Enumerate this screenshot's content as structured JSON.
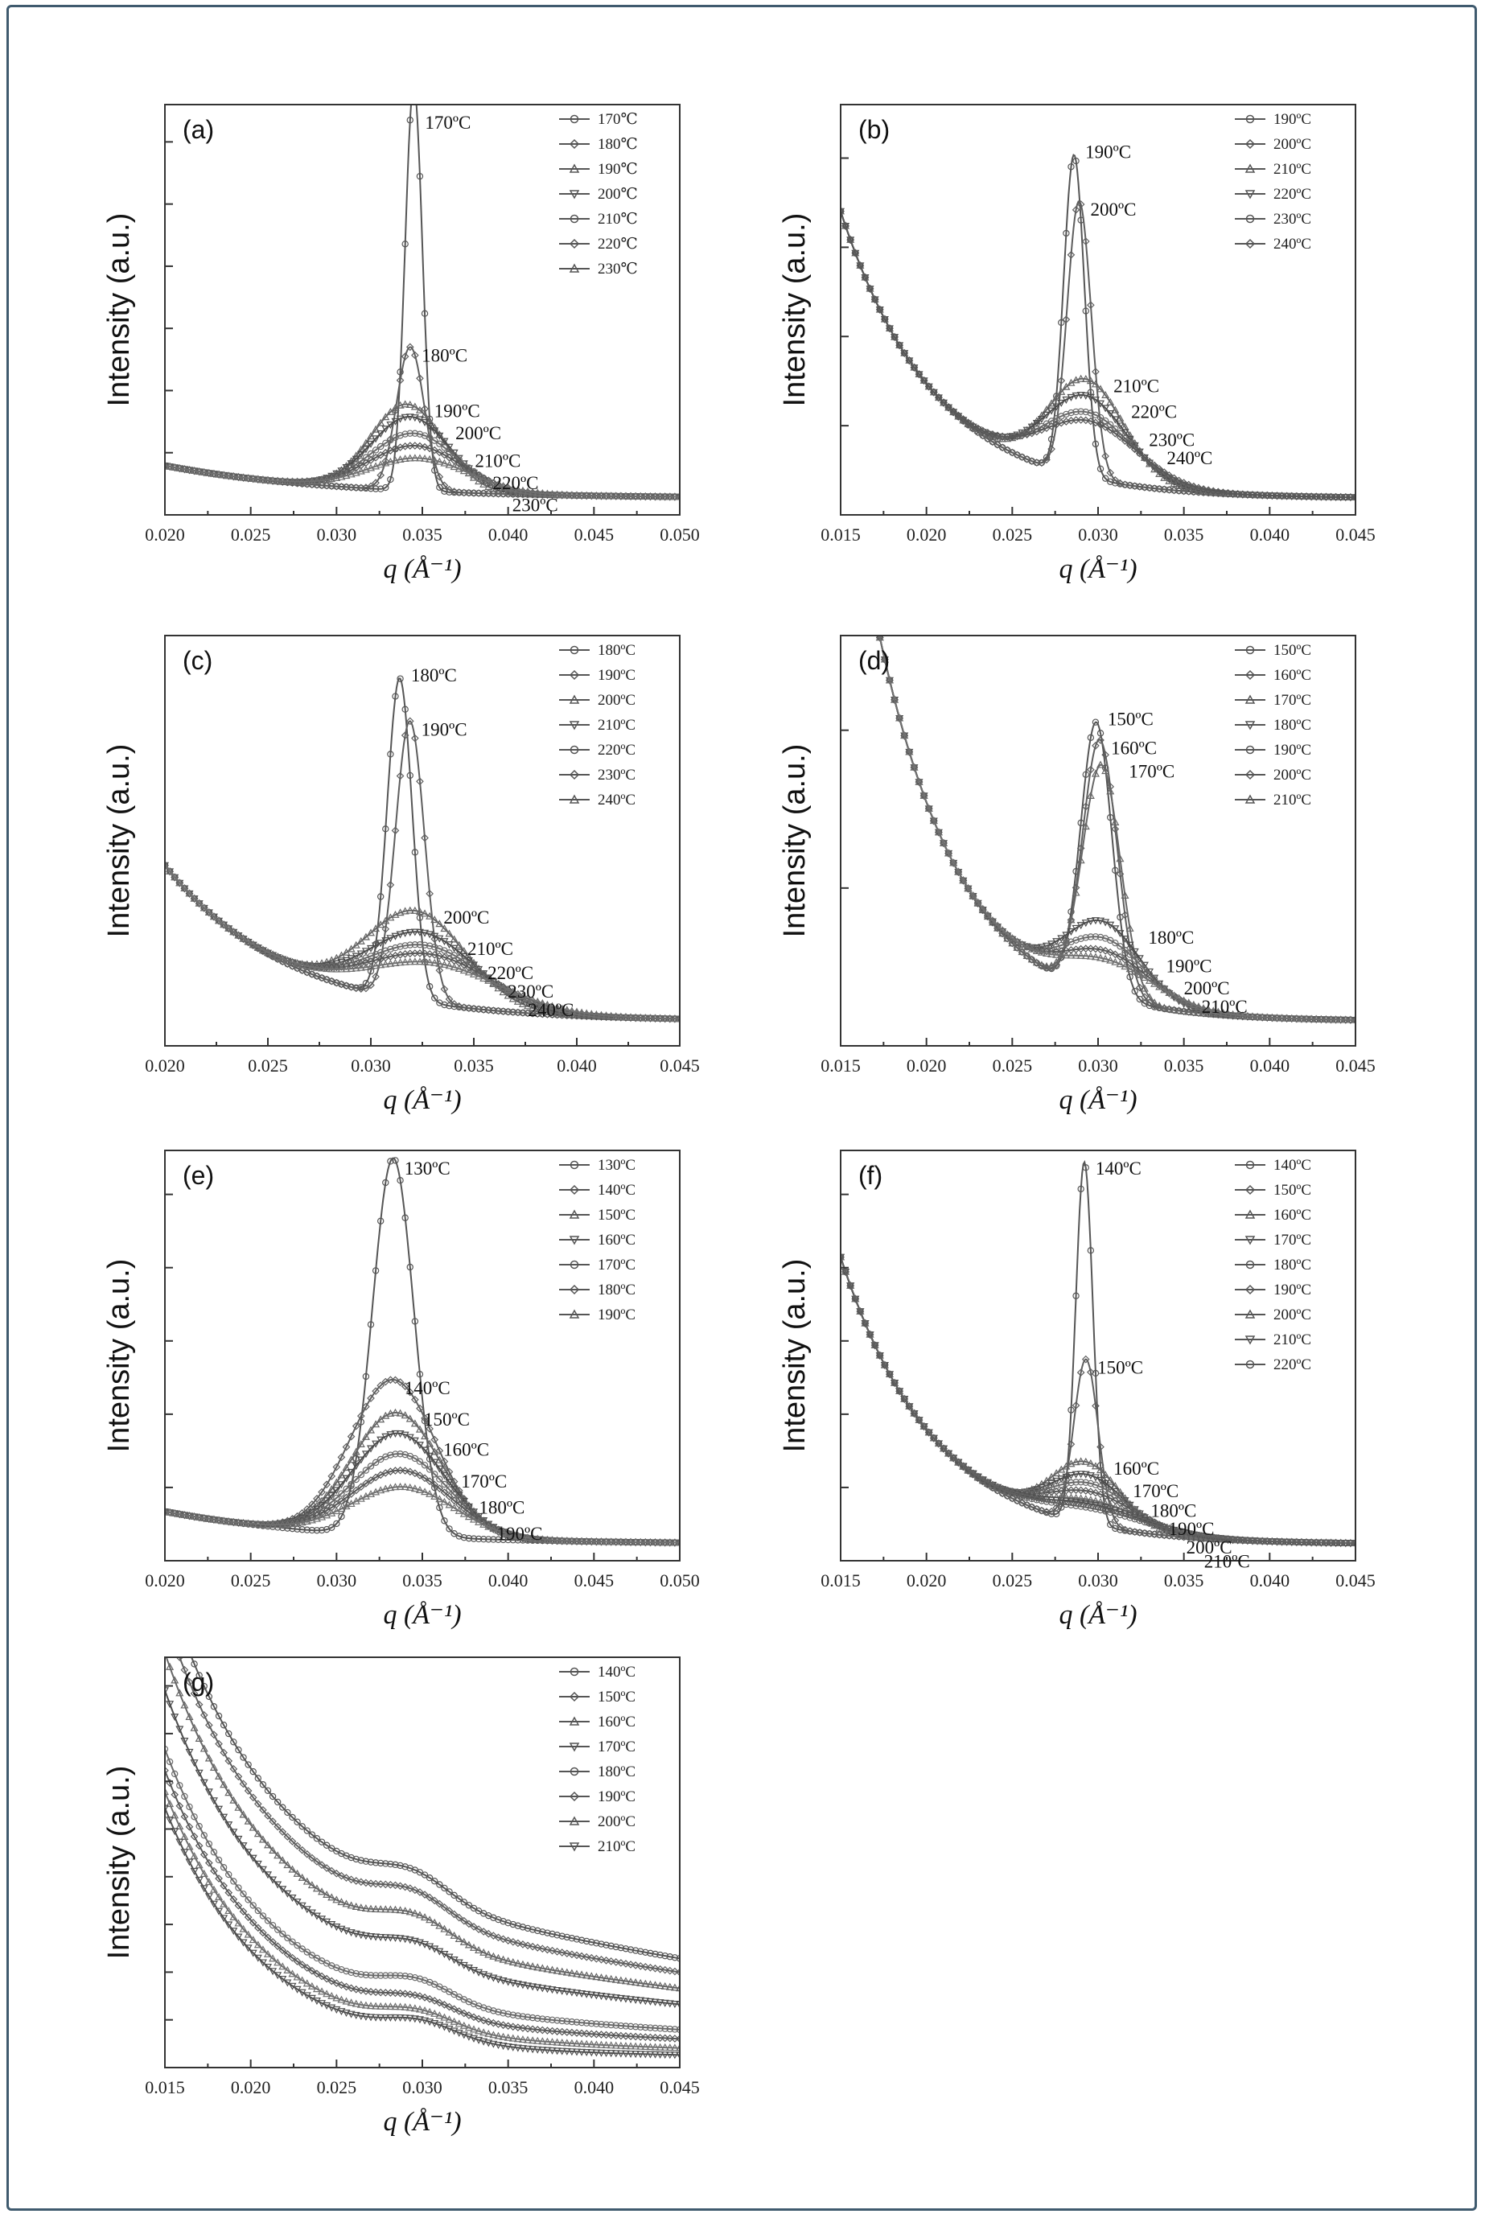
{
  "figure": {
    "ylabel": "Intensity (a.u.)",
    "xlabel": "q (Å⁻¹)"
  },
  "chart_data": [
    {
      "panel": "(a)",
      "type": "line",
      "xlim": [
        0.02,
        0.05
      ],
      "xticks": [
        "0.020",
        "0.025",
        "0.030",
        "0.035",
        "0.040",
        "0.045",
        "0.050"
      ],
      "ylim": [
        0,
        100
      ],
      "yticks": 6,
      "legend_position": "top-right",
      "legend": [
        "170℃",
        "180℃",
        "190℃",
        "200℃",
        "210℃",
        "220℃",
        "230℃"
      ],
      "annotations": [
        "170ºC",
        "180ºC",
        "190ºC",
        "200ºC",
        "210ºC",
        "220ºC",
        "230ºC"
      ],
      "series": [
        {
          "name": "170℃",
          "peak_q": 0.0345,
          "peak_height": 99,
          "width": 0.0005
        },
        {
          "name": "180℃",
          "peak_q": 0.0343,
          "peak_height": 35,
          "width": 0.0008
        },
        {
          "name": "190℃",
          "peak_q": 0.0341,
          "peak_height": 21,
          "width": 0.0021
        },
        {
          "name": "200℃",
          "peak_q": 0.0343,
          "peak_height": 18,
          "width": 0.0023
        },
        {
          "name": "210℃",
          "peak_q": 0.0345,
          "peak_height": 14,
          "width": 0.0025
        },
        {
          "name": "220℃",
          "peak_q": 0.0346,
          "peak_height": 11,
          "width": 0.0027
        },
        {
          "name": "230℃",
          "peak_q": 0.0348,
          "peak_height": 8,
          "width": 0.0029
        }
      ]
    },
    {
      "panel": "(b)",
      "type": "line",
      "xlim": [
        0.015,
        0.045
      ],
      "xticks": [
        "0.015",
        "0.020",
        "0.025",
        "0.030",
        "0.035",
        "0.040",
        "0.045"
      ],
      "ylim": [
        0,
        100
      ],
      "yticks": 4,
      "legend_position": "top-right",
      "legend": [
        "190ºC",
        "200ºC",
        "210ºC",
        "220ºC",
        "230ºC",
        "240ºC"
      ],
      "annotations": [
        "190ºC",
        "200ºC",
        "210ºC",
        "220ºC",
        "230ºC",
        "240ºC"
      ],
      "series": [
        {
          "name": "190ºC",
          "peak_q": 0.0286,
          "peak_height": 78,
          "width": 0.0006
        },
        {
          "name": "200ºC",
          "peak_q": 0.0289,
          "peak_height": 67,
          "width": 0.0007
        },
        {
          "name": "210ºC",
          "peak_q": 0.0293,
          "peak_height": 24,
          "width": 0.0022
        },
        {
          "name": "220ºC",
          "peak_q": 0.0293,
          "peak_height": 20,
          "width": 0.0024
        },
        {
          "name": "230ºC",
          "peak_q": 0.0294,
          "peak_height": 16,
          "width": 0.0026
        },
        {
          "name": "240ºC",
          "peak_q": 0.0295,
          "peak_height": 14,
          "width": 0.0028
        }
      ]
    },
    {
      "panel": "(c)",
      "type": "line",
      "xlim": [
        0.02,
        0.045
      ],
      "xticks": [
        "0.020",
        "0.025",
        "0.030",
        "0.035",
        "0.040",
        "0.045"
      ],
      "ylim": [
        0,
        100
      ],
      "yticks": 0,
      "legend_position": "top-right",
      "legend": [
        "180ºC",
        "190ºC",
        "200ºC",
        "210ºC",
        "220ºC",
        "230ºC",
        "240ºC"
      ],
      "annotations": [
        "180ºC",
        "190ºC",
        "200ºC",
        "210ºC",
        "220ºC",
        "230ºC",
        "240ºC"
      ],
      "series": [
        {
          "name": "180ºC",
          "peak_q": 0.0314,
          "peak_height": 78,
          "width": 0.0006
        },
        {
          "name": "190ºC",
          "peak_q": 0.0319,
          "peak_height": 68,
          "width": 0.0007
        },
        {
          "name": "200ºC",
          "peak_q": 0.0322,
          "peak_height": 22,
          "width": 0.0024
        },
        {
          "name": "210ºC",
          "peak_q": 0.0325,
          "peak_height": 17,
          "width": 0.0026
        },
        {
          "name": "220ºC",
          "peak_q": 0.0327,
          "peak_height": 14,
          "width": 0.0028
        },
        {
          "name": "230ºC",
          "peak_q": 0.0329,
          "peak_height": 12,
          "width": 0.003
        },
        {
          "name": "240ºC",
          "peak_q": 0.0331,
          "peak_height": 10,
          "width": 0.0032
        }
      ]
    },
    {
      "panel": "(d)",
      "type": "line",
      "xlim": [
        0.015,
        0.045
      ],
      "xticks": [
        "0.015",
        "0.020",
        "0.025",
        "0.030",
        "0.035",
        "0.040",
        "0.045"
      ],
      "ylim": [
        0,
        100
      ],
      "yticks": 2,
      "legend_position": "top-right",
      "legend": [
        "150ºC",
        "160ºC",
        "170ºC",
        "180ºC",
        "190ºC",
        "200ºC",
        "210ºC"
      ],
      "annotations": [
        "150ºC",
        "160ºC",
        "170ºC",
        "180ºC",
        "190ºC",
        "200ºC",
        "210ºC"
      ],
      "series": [
        {
          "name": "150ºC",
          "peak_q": 0.0299,
          "peak_height": 66,
          "width": 0.0009
        },
        {
          "name": "160ºC",
          "peak_q": 0.0301,
          "peak_height": 62,
          "width": 0.001
        },
        {
          "name": "170ºC",
          "peak_q": 0.0302,
          "peak_height": 56,
          "width": 0.0011
        },
        {
          "name": "180ºC",
          "peak_q": 0.0303,
          "peak_height": 18,
          "width": 0.0022
        },
        {
          "name": "190ºC",
          "peak_q": 0.0304,
          "peak_height": 14,
          "width": 0.0024
        },
        {
          "name": "200ºC",
          "peak_q": 0.0305,
          "peak_height": 11,
          "width": 0.0026
        },
        {
          "name": "210ºC",
          "peak_q": 0.0306,
          "peak_height": 9,
          "width": 0.0028
        }
      ]
    },
    {
      "panel": "(e)",
      "type": "line",
      "xlim": [
        0.02,
        0.05
      ],
      "xticks": [
        "0.020",
        "0.025",
        "0.030",
        "0.035",
        "0.040",
        "0.045",
        "0.050"
      ],
      "ylim": [
        0,
        100
      ],
      "yticks": 5,
      "legend_position": "top-right",
      "legend": [
        "130ºC",
        "140ºC",
        "150ºC",
        "160ºC",
        "170ºC",
        "180ºC",
        "190ºC"
      ],
      "annotations": [
        "130ºC",
        "140ºC",
        "150ºC",
        "160ºC",
        "170ºC",
        "180ºC",
        "190ºC"
      ],
      "series": [
        {
          "name": "130ºC",
          "peak_q": 0.0333,
          "peak_height": 92,
          "width": 0.0012
        },
        {
          "name": "140ºC",
          "peak_q": 0.0333,
          "peak_height": 38,
          "width": 0.0025
        },
        {
          "name": "150ºC",
          "peak_q": 0.0335,
          "peak_height": 30,
          "width": 0.0026
        },
        {
          "name": "160ºC",
          "peak_q": 0.0336,
          "peak_height": 25,
          "width": 0.0027
        },
        {
          "name": "170ºC",
          "peak_q": 0.0337,
          "peak_height": 20,
          "width": 0.0028
        },
        {
          "name": "180ºC",
          "peak_q": 0.0338,
          "peak_height": 16,
          "width": 0.0029
        },
        {
          "name": "190ºC",
          "peak_q": 0.0339,
          "peak_height": 12,
          "width": 0.003
        }
      ]
    },
    {
      "panel": "(f)",
      "type": "line",
      "xlim": [
        0.015,
        0.045
      ],
      "xticks": [
        "0.015",
        "0.020",
        "0.025",
        "0.030",
        "0.035",
        "0.040",
        "0.045"
      ],
      "ylim": [
        0,
        100
      ],
      "yticks": 5,
      "legend_position": "top-right",
      "legend": [
        "140ºC",
        "150ºC",
        "160ºC",
        "170ºC",
        "180ºC",
        "190ºC",
        "200ºC",
        "210ºC",
        "220ºC"
      ],
      "annotations": [
        "140ºC",
        "150ºC",
        "160ºC",
        "170ºC",
        "180ºC",
        "190ºC",
        "200ºC",
        "210ºC"
      ],
      "series": [
        {
          "name": "140ºC",
          "peak_q": 0.0292,
          "peak_height": 88,
          "width": 0.0005
        },
        {
          "name": "150ºC",
          "peak_q": 0.0293,
          "peak_height": 40,
          "width": 0.0007
        },
        {
          "name": "160ºC",
          "peak_q": 0.0293,
          "peak_height": 15,
          "width": 0.002
        },
        {
          "name": "170ºC",
          "peak_q": 0.0294,
          "peak_height": 12,
          "width": 0.0022
        },
        {
          "name": "180ºC",
          "peak_q": 0.0295,
          "peak_height": 10,
          "width": 0.0024
        },
        {
          "name": "190ºC",
          "peak_q": 0.0296,
          "peak_height": 8,
          "width": 0.0026
        },
        {
          "name": "200ºC",
          "peak_q": 0.0297,
          "peak_height": 6,
          "width": 0.0028
        },
        {
          "name": "210ºC",
          "peak_q": 0.0298,
          "peak_height": 5,
          "width": 0.003
        },
        {
          "name": "220ºC",
          "peak_q": 0.0299,
          "peak_height": 4,
          "width": 0.0032
        }
      ]
    },
    {
      "panel": "(g)",
      "type": "line",
      "xlim": [
        0.015,
        0.045
      ],
      "xticks": [
        "0.015",
        "0.020",
        "0.025",
        "0.030",
        "0.035",
        "0.040",
        "0.045"
      ],
      "ylim": [
        0,
        100
      ],
      "yticks": 8,
      "legend_position": "top-right",
      "legend": [
        "140ºC",
        "150ºC",
        "160ºC",
        "170ºC",
        "180ºC",
        "190ºC",
        "200ºC",
        "210ºC"
      ],
      "annotations": [],
      "series": [
        {
          "name": "140ºC",
          "offset": 44,
          "shoulder_q": 0.0295,
          "shoulder_height": 6
        },
        {
          "name": "150ºC",
          "offset": 38,
          "shoulder_q": 0.0295,
          "shoulder_height": 6
        },
        {
          "name": "160ºC",
          "offset": 31,
          "shoulder_q": 0.0296,
          "shoulder_height": 6
        },
        {
          "name": "170ºC",
          "offset": 24,
          "shoulder_q": 0.0297,
          "shoulder_height": 5
        },
        {
          "name": "180ºC",
          "offset": 13,
          "shoulder_q": 0.0297,
          "shoulder_height": 5
        },
        {
          "name": "190ºC",
          "offset": 9,
          "shoulder_q": 0.0298,
          "shoulder_height": 4
        },
        {
          "name": "200ºC",
          "offset": 5,
          "shoulder_q": 0.0298,
          "shoulder_height": 4
        },
        {
          "name": "210ºC",
          "offset": 2,
          "shoulder_q": 0.0299,
          "shoulder_height": 4
        }
      ]
    }
  ]
}
